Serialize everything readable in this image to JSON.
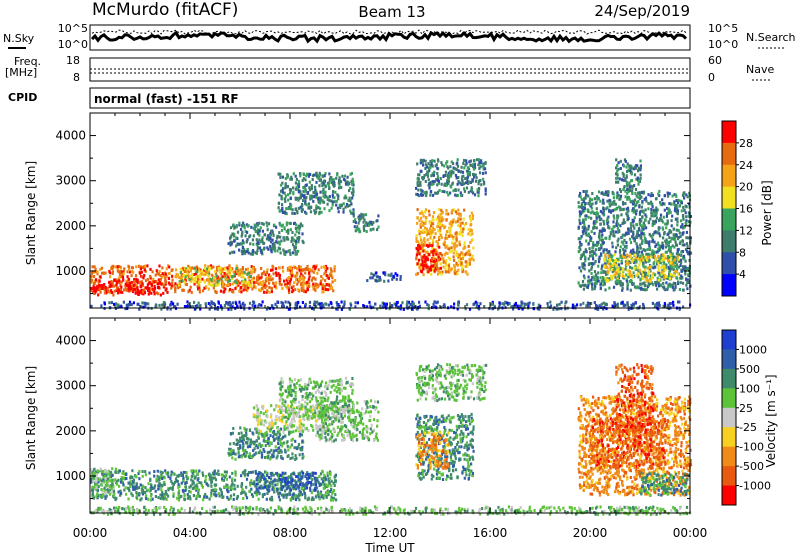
{
  "header": {
    "station": "McMurdo (fitACF)",
    "beam": "Beam 13",
    "date": "24/Sep/2019"
  },
  "noise_panel": {
    "left_label": "N.Sky",
    "left_ticks": [
      "10^5",
      "10^0"
    ],
    "right_label": "N.Search",
    "right_ticks": [
      "10^5",
      "10^0"
    ]
  },
  "freq_panel": {
    "left_label_1": "Freq.",
    "left_label_2": "[MHz]",
    "left_ticks": [
      "18",
      "8"
    ],
    "right_label": "Nave",
    "right_ticks": [
      "60",
      "0"
    ]
  },
  "cpid_panel": {
    "label": "CPID",
    "text": "normal (fast) -151 RF"
  },
  "x_axis": {
    "ticks": [
      "00:00",
      "04:00",
      "08:00",
      "12:00",
      "16:00",
      "20:00",
      "00:00"
    ],
    "title": "Time UT"
  },
  "power_panel": {
    "ylabel": "Slant Range [km]",
    "yticks": [
      "1000",
      "2000",
      "3000",
      "4000"
    ],
    "colorbar_label": "Power [dB]",
    "colorbar_ticks": [
      "4",
      "8",
      "12",
      "16",
      "20",
      "24",
      "28"
    ],
    "colors": [
      "#0000ff",
      "#2f4fa8",
      "#3e7d6d",
      "#3aa45e",
      "#f0e020",
      "#f4a318",
      "#e66a10",
      "#ff0000"
    ]
  },
  "velocity_panel": {
    "ylabel": "Slant Range [km]",
    "yticks": [
      "1000",
      "2000",
      "3000",
      "4000"
    ],
    "colorbar_label": "Velocity [m s⁻¹]",
    "colorbar_ticks": [
      "1000",
      "500",
      "100",
      "25",
      "-25",
      "-100",
      "-500",
      "-1000"
    ],
    "colors": [
      "#1f3fd0",
      "#2f5fa8",
      "#3e8a6a",
      "#5dc43a",
      "#c8c8c8",
      "#f8d020",
      "#f08a18",
      "#e85a10",
      "#ff0000"
    ]
  },
  "chart_data": {
    "type": "heatmap",
    "x_range_hours": [
      0,
      24
    ],
    "y_range_km": [
      180,
      4500
    ],
    "power_regions": [
      {
        "t0": 0.0,
        "t1": 9.8,
        "r0": 550,
        "r1": 1150,
        "level": 6
      },
      {
        "t0": 0.0,
        "t1": 3.0,
        "r0": 500,
        "r1": 850,
        "level": 7
      },
      {
        "t0": 3.5,
        "t1": 6.5,
        "r0": 700,
        "r1": 1100,
        "level": 4
      },
      {
        "t0": 5.5,
        "t1": 8.5,
        "r0": 1400,
        "r1": 2100,
        "level": 2
      },
      {
        "t0": 7.5,
        "t1": 10.5,
        "r0": 2300,
        "r1": 3200,
        "level": 2
      },
      {
        "t0": 10.5,
        "t1": 11.5,
        "r0": 1900,
        "r1": 2300,
        "level": 2
      },
      {
        "t0": 11.0,
        "t1": 12.4,
        "r0": 800,
        "r1": 1000,
        "level": 1
      },
      {
        "t0": 13.0,
        "t1": 15.3,
        "r0": 950,
        "r1": 2400,
        "level": 5
      },
      {
        "t0": 13.0,
        "t1": 14.0,
        "r0": 1000,
        "r1": 1600,
        "level": 7
      },
      {
        "t0": 13.0,
        "t1": 15.8,
        "r0": 2700,
        "r1": 3500,
        "level": 2
      },
      {
        "t0": 19.5,
        "t1": 24.0,
        "r0": 600,
        "r1": 2800,
        "level": 2
      },
      {
        "t0": 20.5,
        "t1": 23.5,
        "r0": 800,
        "r1": 1400,
        "level": 4
      },
      {
        "t0": 21.0,
        "t1": 22.0,
        "r0": 2800,
        "r1": 3500,
        "level": 2
      },
      {
        "t0": 0.0,
        "t1": 24.0,
        "r0": 180,
        "r1": 350,
        "level": 1
      }
    ],
    "velocity_regions": [
      {
        "t0": 0.0,
        "t1": 9.8,
        "r0": 500,
        "r1": 1150,
        "level": 2
      },
      {
        "t0": 0.0,
        "t1": 1.0,
        "r0": 600,
        "r1": 1200,
        "level": 3
      },
      {
        "t0": 6.5,
        "t1": 9.0,
        "r0": 700,
        "r1": 1100,
        "level": 1
      },
      {
        "t0": 5.5,
        "t1": 8.5,
        "r0": 1400,
        "r1": 2100,
        "level": 2
      },
      {
        "t0": 6.5,
        "t1": 9.5,
        "r0": 2000,
        "r1": 2600,
        "level": 4
      },
      {
        "t0": 7.5,
        "t1": 10.5,
        "r0": 2300,
        "r1": 3200,
        "level": 3
      },
      {
        "t0": 9.0,
        "t1": 11.5,
        "r0": 1800,
        "r1": 2700,
        "level": 3
      },
      {
        "t0": 13.0,
        "t1": 15.3,
        "r0": 950,
        "r1": 2400,
        "level": 2
      },
      {
        "t0": 13.0,
        "t1": 14.3,
        "r0": 1200,
        "r1": 2000,
        "level": 6
      },
      {
        "t0": 13.0,
        "t1": 15.8,
        "r0": 2700,
        "r1": 3500,
        "level": 3
      },
      {
        "t0": 19.5,
        "t1": 24.0,
        "r0": 600,
        "r1": 2800,
        "level": 6
      },
      {
        "t0": 20.0,
        "t1": 23.0,
        "r0": 1200,
        "r1": 2300,
        "level": 7
      },
      {
        "t0": 21.0,
        "t1": 22.5,
        "r0": 2000,
        "r1": 3500,
        "level": 7
      },
      {
        "t0": 22.0,
        "t1": 24.0,
        "r0": 600,
        "r1": 1100,
        "level": 2
      },
      {
        "t0": 0.0,
        "t1": 24.0,
        "r0": 180,
        "r1": 350,
        "level": 3
      }
    ]
  }
}
